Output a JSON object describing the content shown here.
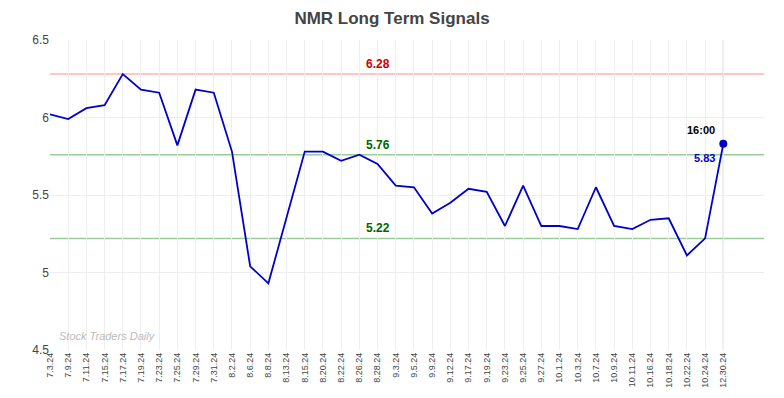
{
  "chart_data": {
    "type": "line",
    "title": "NMR Long Term Signals",
    "categories": [
      "7.3.24",
      "7.9.24",
      "7.11.24",
      "7.15.24",
      "7.17.24",
      "7.19.24",
      "7.23.24",
      "7.25.24",
      "7.29.24",
      "7.31.24",
      "8.2.24",
      "8.6.24",
      "8.8.24",
      "8.13.24",
      "8.15.24",
      "8.20.24",
      "8.22.24",
      "8.26.24",
      "8.28.24",
      "9.3.24",
      "9.5.24",
      "9.9.24",
      "9.12.24",
      "9.17.24",
      "9.19.24",
      "9.23.24",
      "9.25.24",
      "9.27.24",
      "10.1.24",
      "10.3.24",
      "10.7.24",
      "10.9.24",
      "10.11.24",
      "10.16.24",
      "10.18.24",
      "10.22.24",
      "10.24.24",
      "12.30.24"
    ],
    "values": [
      6.02,
      5.99,
      6.06,
      6.08,
      6.28,
      6.18,
      6.16,
      5.82,
      6.18,
      6.16,
      5.78,
      5.04,
      4.93,
      5.35,
      5.78,
      5.78,
      5.72,
      5.76,
      5.7,
      5.56,
      5.55,
      5.38,
      5.45,
      5.54,
      5.52,
      5.3,
      5.56,
      5.3,
      5.3,
      5.28,
      5.55,
      5.3,
      5.28,
      5.34,
      5.35,
      5.11,
      5.22,
      5.83
    ],
    "color": "#0000cc",
    "ylim": [
      4.5,
      6.5
    ],
    "yticks": [
      4.5,
      5.0,
      5.5,
      6.0,
      6.5
    ],
    "grid": true,
    "hlines": [
      {
        "value": 6.28,
        "color": "#ffb3b3",
        "label": "6.28",
        "label_color": "#cc0000"
      },
      {
        "value": 5.76,
        "color": "#99cc99",
        "label": "5.76",
        "label_color": "#006600"
      },
      {
        "value": 5.22,
        "color": "#99cc99",
        "label": "5.22",
        "label_color": "#006600"
      }
    ],
    "last_point": {
      "label_time": "16:00",
      "label_value": "5.83",
      "color": "#0000cc"
    },
    "watermark": "Stock Traders Daily"
  }
}
